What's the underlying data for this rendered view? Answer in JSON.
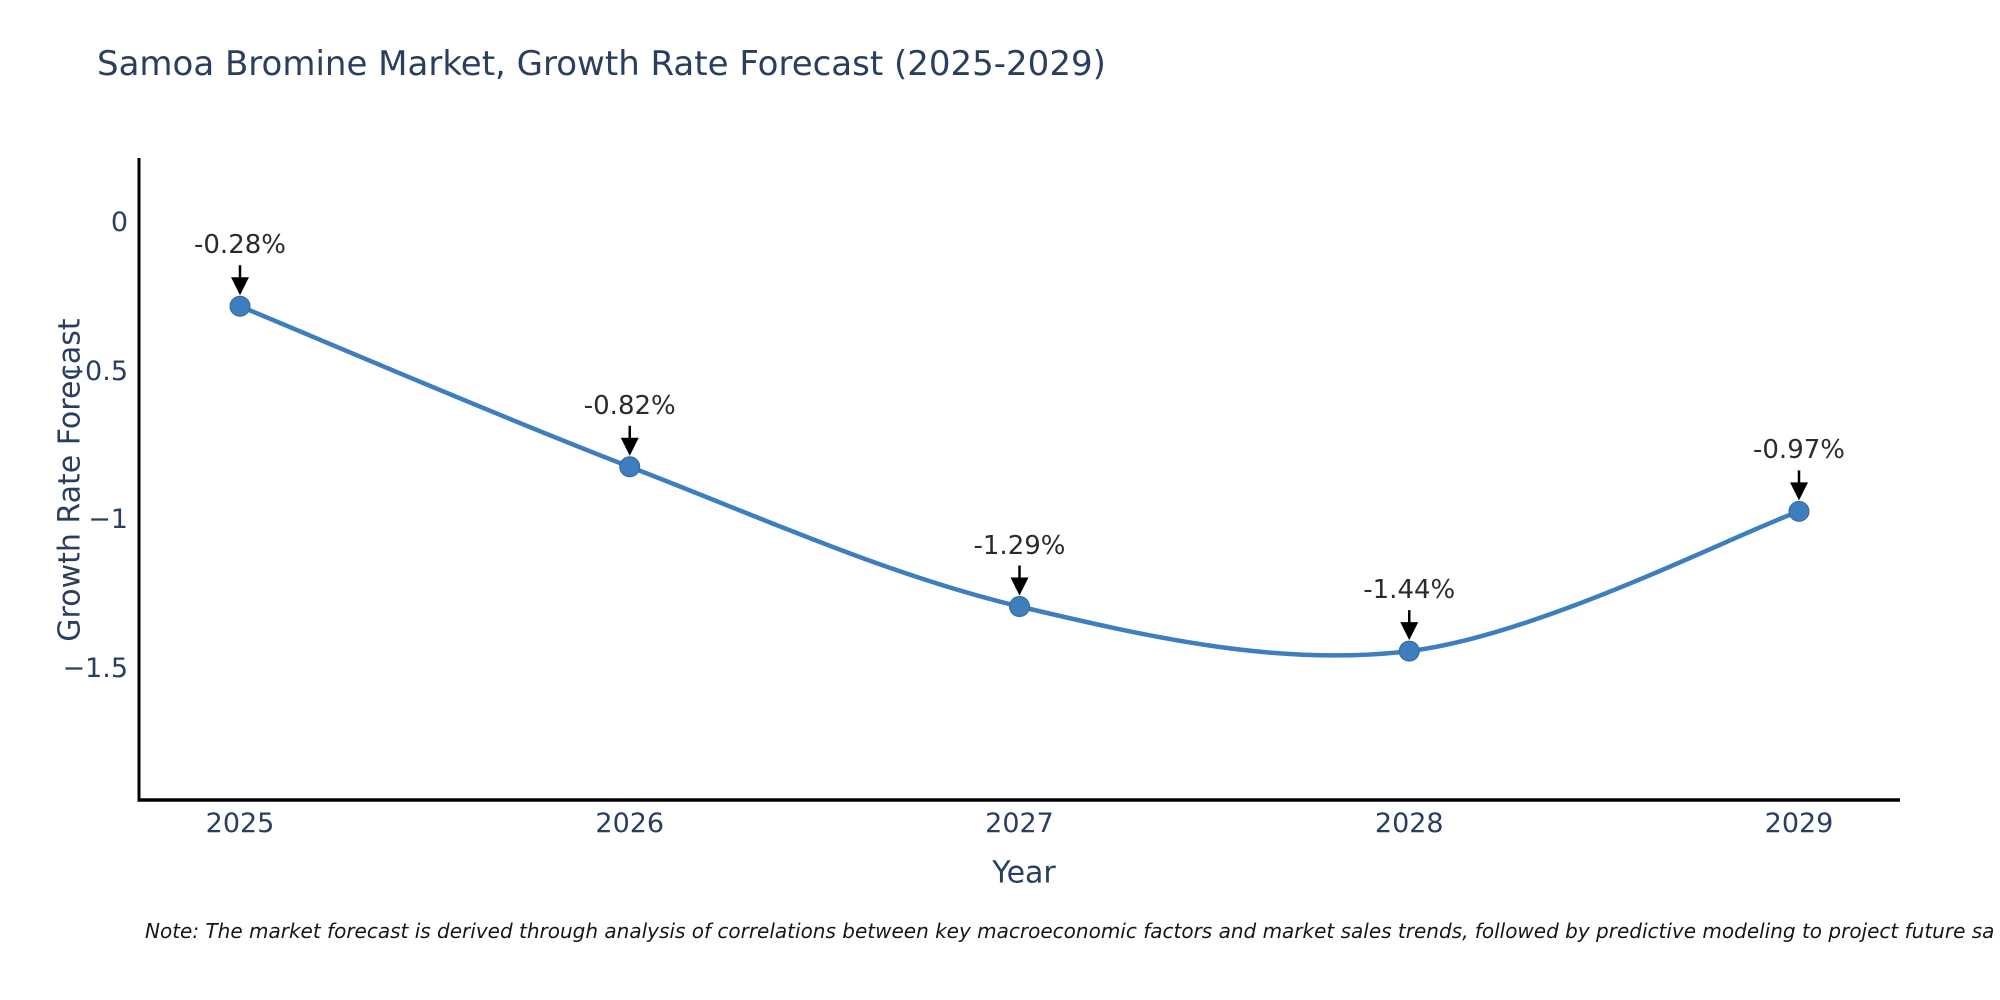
{
  "title": "Samoa Bromine Market, Growth Rate Forecast (2025-2029)",
  "note": "Note: The market forecast is derived through analysis of correlations between key macroeconomic factors and market sales trends, followed by predictive modeling to project future sa",
  "colors": {
    "series_blue": "#3d7ebf",
    "marker_stroke": "#336699",
    "text_navy": "#2a3f5f",
    "annotation_text": "#2b2b2b",
    "axis_line": "#000000",
    "arrow_black": "#000000",
    "background": "#ffffff"
  },
  "chart_data": {
    "type": "line",
    "title": "Samoa Bromine Market, Growth Rate Forecast (2025-2029)",
    "xlabel": "Year",
    "ylabel": "Growth Rate Forecast",
    "categories": [
      "2025",
      "2026",
      "2027",
      "2028",
      "2029"
    ],
    "series": [
      {
        "name": "Growth Rate Forecast",
        "values": [
          -0.28,
          -0.82,
          -1.29,
          -1.44,
          -0.97
        ],
        "point_labels": [
          "-0.28%",
          "-0.82%",
          "-1.29%",
          "-1.44%",
          "-0.97%"
        ]
      }
    ],
    "y_ticks": [
      {
        "label": "0",
        "value": 0
      },
      {
        "label": "−0.5",
        "value": -0.5
      },
      {
        "label": "−1",
        "value": -1
      },
      {
        "label": "−1.5",
        "value": -1.5
      }
    ],
    "ylim": [
      0.21,
      -1.94
    ],
    "grid": false,
    "legend_position": "none",
    "line_shape": "spline",
    "annotations_have_arrows": true
  }
}
